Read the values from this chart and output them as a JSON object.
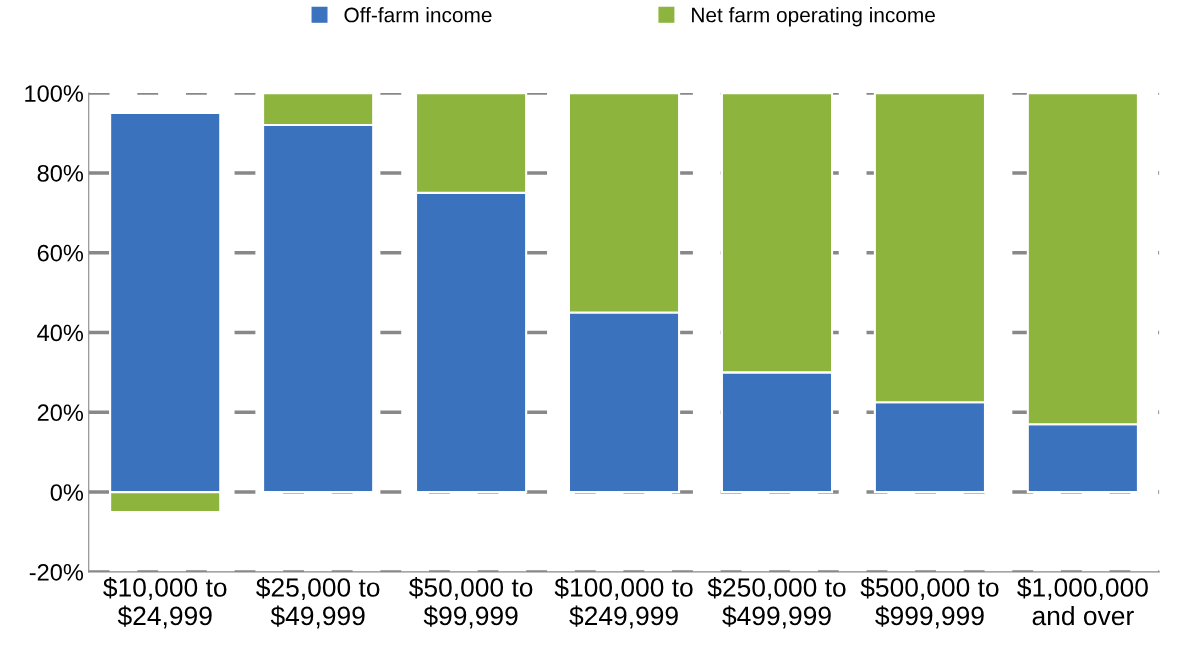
{
  "chart_data": {
    "type": "bar",
    "stacked": true,
    "categories": [
      "$10,000 to\n$24,999",
      "$25,000 to\n$49,999",
      "$50,000 to\n$99,999",
      "$100,000 to\n$249,999",
      "$250,000 to\n$499,999",
      "$500,000 to\n$999,999",
      "$1,000,000\nand over"
    ],
    "series": [
      {
        "name": "Off-farm income",
        "color": "#3b72be",
        "values": [
          95,
          92,
          75,
          45,
          30,
          22.5,
          17
        ]
      },
      {
        "name": "Net farm operating income",
        "color": "#8db43c",
        "values": [
          -5,
          8,
          25,
          55,
          70,
          77.5,
          83
        ]
      }
    ],
    "ylim": [
      -20,
      100
    ],
    "yticks": [
      {
        "value": -20,
        "label": "-20%"
      },
      {
        "value": 0,
        "label": "0%"
      },
      {
        "value": 20,
        "label": "20%"
      },
      {
        "value": 40,
        "label": "40%"
      },
      {
        "value": 60,
        "label": "60%"
      },
      {
        "value": 80,
        "label": "80%"
      },
      {
        "value": 100,
        "label": "100%"
      }
    ],
    "grid": "y",
    "legend": "top"
  }
}
